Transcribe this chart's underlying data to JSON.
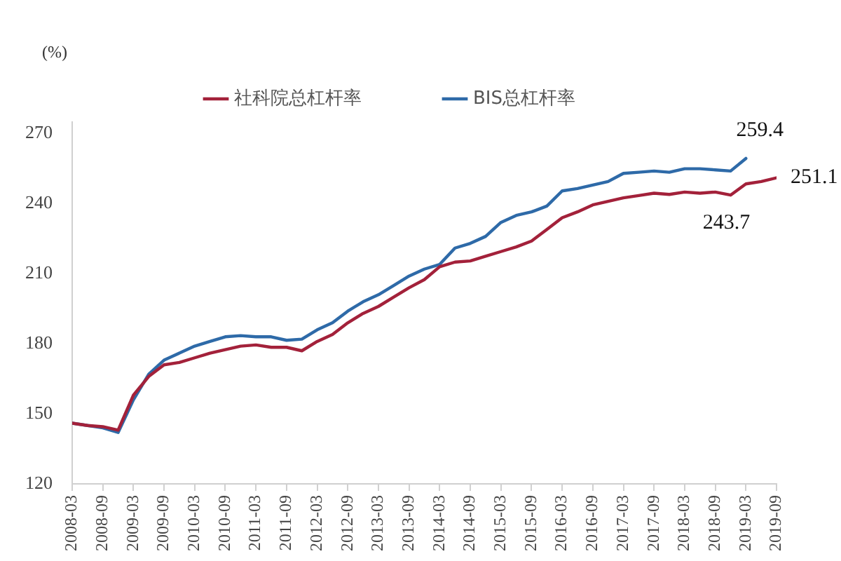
{
  "chart_data": {
    "type": "line",
    "ylabel": "(%)",
    "legend": "top",
    "grid": false,
    "marker": "none",
    "line_style": "solid",
    "x": [
      "2008-03",
      "2008-06",
      "2008-09",
      "2008-12",
      "2009-03",
      "2009-06",
      "2009-09",
      "2009-12",
      "2010-03",
      "2010-06",
      "2010-09",
      "2010-12",
      "2011-03",
      "2011-06",
      "2011-09",
      "2011-12",
      "2012-03",
      "2012-06",
      "2012-09",
      "2012-12",
      "2013-03",
      "2013-06",
      "2013-09",
      "2013-12",
      "2014-03",
      "2014-06",
      "2014-09",
      "2014-12",
      "2015-03",
      "2015-06",
      "2015-09",
      "2015-12",
      "2016-03",
      "2016-06",
      "2016-09",
      "2016-12",
      "2017-03",
      "2017-06",
      "2017-09",
      "2017-12",
      "2018-03",
      "2018-06",
      "2018-09",
      "2018-12",
      "2019-03",
      "2019-06",
      "2019-09"
    ],
    "series": [
      {
        "name": "社科院总杠杆率",
        "color": "#a3213a",
        "values": [
          146,
          145,
          144.5,
          143,
          158,
          166,
          171,
          172,
          174,
          176,
          177.5,
          179,
          179.5,
          178.5,
          178.5,
          177,
          181,
          184,
          189,
          193,
          196,
          200,
          204,
          207.5,
          213,
          215,
          215.5,
          217.5,
          219.5,
          221.5,
          224,
          229,
          234,
          236.5,
          239.5,
          241,
          242.5,
          243.5,
          244.5,
          244,
          245,
          244.5,
          245,
          243.7,
          248.5,
          249.5,
          251.1
        ]
      },
      {
        "name": "BIS总杠杆率",
        "color": "#2e6aa8",
        "values": [
          146,
          145,
          144,
          142,
          156,
          167,
          173,
          176,
          179,
          181,
          183,
          183.5,
          183,
          183,
          181.5,
          182,
          186,
          189,
          194,
          198,
          201,
          205,
          209,
          212,
          214,
          221,
          223,
          226,
          232,
          235,
          236.5,
          239,
          245.5,
          246.5,
          248,
          249.5,
          253,
          253.5,
          254,
          253.5,
          255,
          255,
          254.5,
          254,
          259.4,
          null,
          null
        ]
      }
    ],
    "ylim": [
      120,
      275
    ],
    "yticks": [
      120,
      150,
      180,
      210,
      240,
      270
    ],
    "xlim": [
      "2008-03",
      "2019-09"
    ],
    "xticks": [
      "2008-03",
      "2008-09",
      "2009-03",
      "2009-09",
      "2010-03",
      "2010-09",
      "2011-03",
      "2011-09",
      "2012-03",
      "2012-09",
      "2013-03",
      "2013-09",
      "2014-03",
      "2014-09",
      "2015-03",
      "2015-09",
      "2016-03",
      "2016-09",
      "2017-03",
      "2017-09",
      "2018-03",
      "2018-09",
      "2019-03",
      "2019-09"
    ],
    "annotations": [
      {
        "text": "259.4",
        "x": "2019-03",
        "y": 259.4
      },
      {
        "text": "251.1",
        "x": "2019-09",
        "y": 251.1
      },
      {
        "text": "243.7",
        "x": "2018-12",
        "y": 243.7
      }
    ]
  }
}
